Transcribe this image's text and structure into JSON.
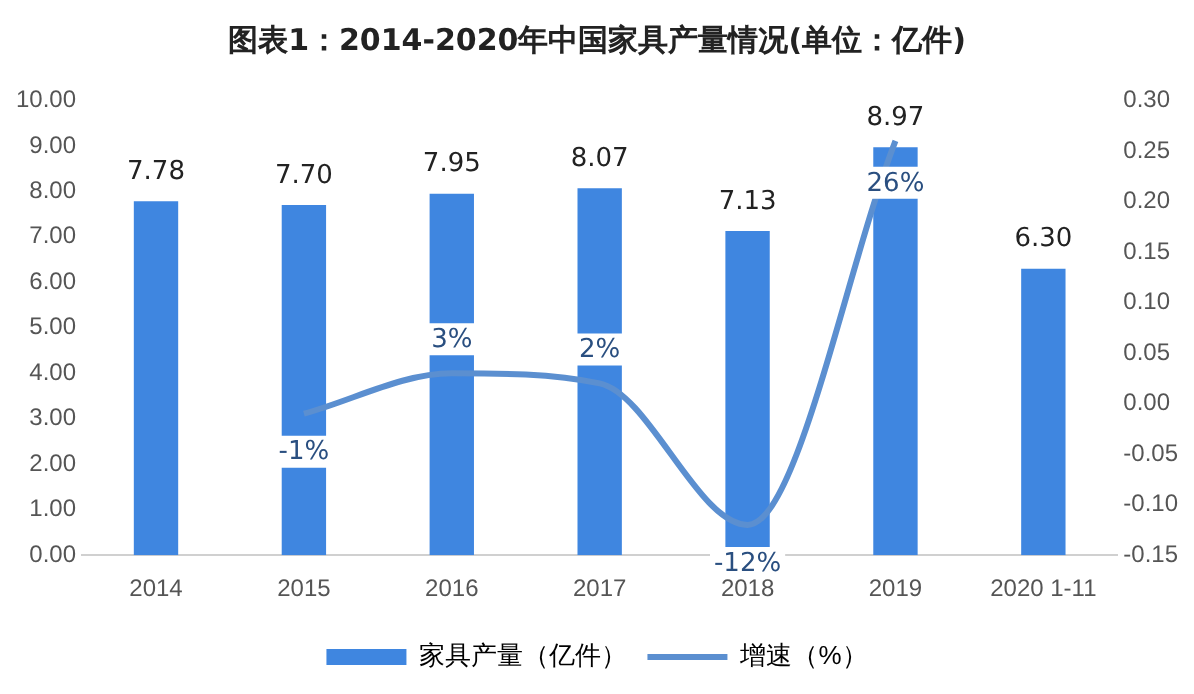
{
  "chart_data": {
    "type": "bar",
    "title": "图表1：2014-2020年中国家具产量情况(单位：亿件)",
    "categories": [
      "2014",
      "2015",
      "2016",
      "2017",
      "2018",
      "2019",
      "2020 1-11"
    ],
    "series": [
      {
        "name": "家具产量（亿件）",
        "color": "#3f86e0",
        "values": [
          7.78,
          7.7,
          7.95,
          8.07,
          7.13,
          8.97,
          6.3
        ],
        "value_labels": [
          "7.78",
          "7.70",
          "7.95",
          "8.07",
          "7.13",
          "8.97",
          "6.30"
        ]
      },
      {
        "name": "增速（%）",
        "type": "line",
        "axis": "y2",
        "color": "#5b8fd0",
        "values": [
          null,
          -0.01,
          0.03,
          0.02,
          -0.12,
          0.26,
          null
        ],
        "value_labels": [
          null,
          "-1%",
          "3%",
          "2%",
          "-12%",
          "26%",
          null
        ]
      }
    ],
    "ylim": [
      0,
      10
    ],
    "yticks": [
      {
        "value": 0,
        "label": "0.00"
      },
      {
        "value": 1,
        "label": "1.00"
      },
      {
        "value": 2,
        "label": "2.00"
      },
      {
        "value": 3,
        "label": "3.00"
      },
      {
        "value": 4,
        "label": "4.00"
      },
      {
        "value": 5,
        "label": "5.00"
      },
      {
        "value": 6,
        "label": "6.00"
      },
      {
        "value": 7,
        "label": "7.00"
      },
      {
        "value": 8,
        "label": "8.00"
      },
      {
        "value": 9,
        "label": "9.00"
      },
      {
        "value": 10,
        "label": "10.00"
      }
    ],
    "y2lim": [
      -0.15,
      0.3
    ],
    "y2ticks": [
      {
        "value": -0.15,
        "label": "-0.15"
      },
      {
        "value": -0.1,
        "label": "-0.10"
      },
      {
        "value": -0.05,
        "label": "-0.05"
      },
      {
        "value": 0,
        "label": "0.00"
      },
      {
        "value": 0.05,
        "label": "0.05"
      },
      {
        "value": 0.1,
        "label": "0.10"
      },
      {
        "value": 0.15,
        "label": "0.15"
      },
      {
        "value": 0.2,
        "label": "0.20"
      },
      {
        "value": 0.25,
        "label": "0.25"
      },
      {
        "value": 0.3,
        "label": "0.30"
      }
    ],
    "grid": false,
    "legend": "bottom",
    "marker": "none",
    "line_style": "solid"
  }
}
